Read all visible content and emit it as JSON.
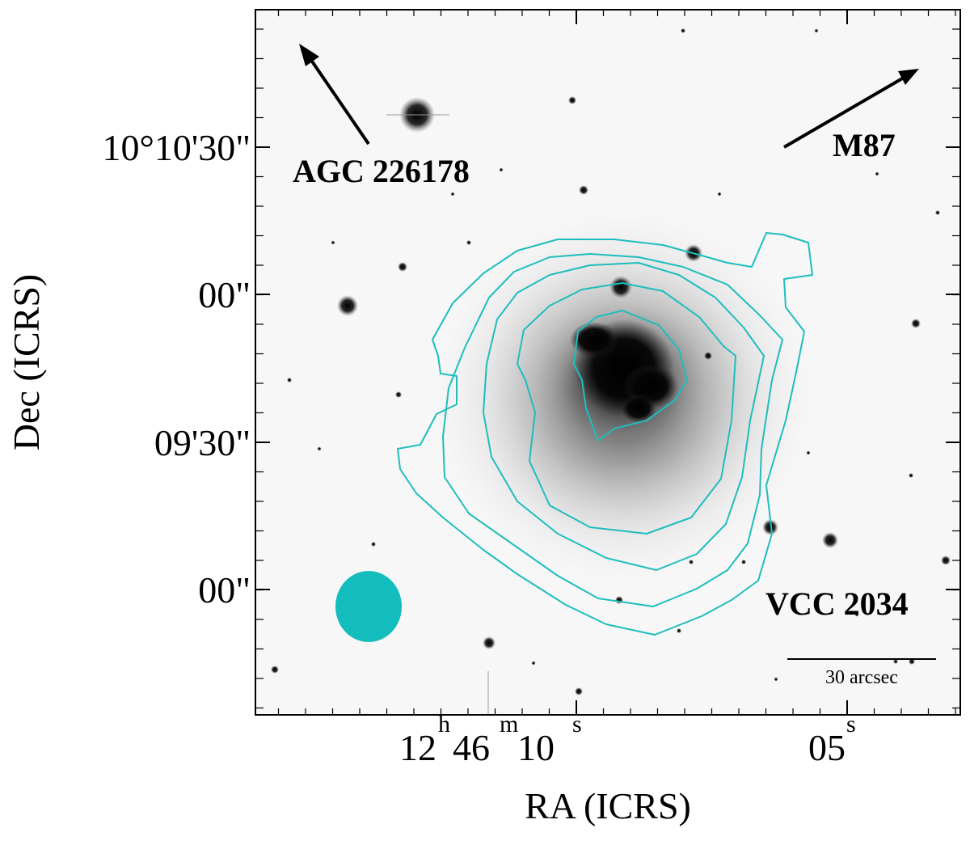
{
  "figure": {
    "xlabel": "RA (ICRS)",
    "ylabel": "Dec (ICRS)",
    "ra_ticks": [
      {
        "h": "12",
        "m": "46",
        "s": "10",
        "h_unit": "h",
        "m_unit": "m",
        "s_unit": "s"
      },
      {
        "s": "05",
        "s_unit": "s"
      }
    ],
    "dec_ticks": [
      "10°10'30\"",
      "00\"",
      "09'30\"",
      "00\""
    ],
    "annotations": {
      "left_target": "AGC 226178",
      "right_target": "M87",
      "galaxy": "VCC 2034"
    },
    "scale_bar_label": "30 arcsec",
    "colors": {
      "contour": "#1fbdbd",
      "beam": "#14bdbd",
      "frame": "#000000",
      "background": "#f7f7f7"
    }
  }
}
